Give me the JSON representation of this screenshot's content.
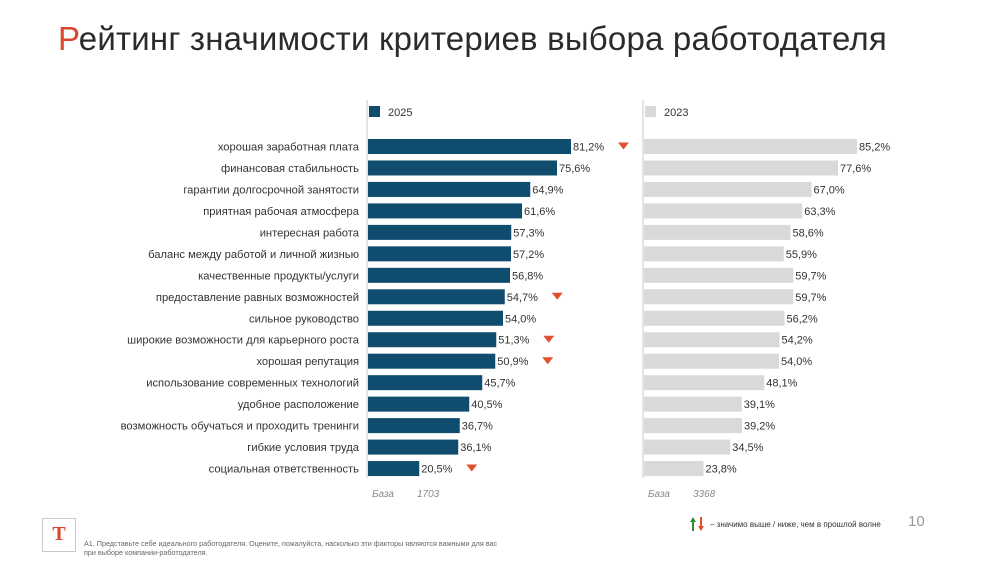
{
  "title_first": "Р",
  "title_rest": "ейтинг значимости критериев выбора работодателя",
  "footnote": "А1. Представьте себе идеального работодателя. Оцените, пожалуйста, насколько эти факторы являются важными для вас при выборе компании-работодателя.",
  "legend_note": "– значимо выше / ниже, чем в прошлой волне",
  "page_number": "10",
  "logo_letter": "Т",
  "chart_data": {
    "type": "bar",
    "orientation": "horizontal",
    "categories": [
      "хорошая заработная плата",
      "финансовая стабильность",
      "гарантии долгосрочной занятости",
      "приятная рабочая атмосфера",
      "интересная работа",
      "баланс между работой и личной жизнью",
      "качественные продукты/услуги",
      "предоставление равных возможностей",
      "сильное руководство",
      "широкие возможности для карьерного роста",
      "хорошая репутация",
      "использование современных технологий",
      "удобное расположение",
      "возможность обучаться и проходить тренинги",
      "гибкие условия труда",
      "социальная ответственность"
    ],
    "series": [
      {
        "name": "2025",
        "color": "#0f4c6e",
        "values": [
          81.2,
          75.6,
          64.9,
          61.6,
          57.3,
          57.2,
          56.8,
          54.7,
          54.0,
          51.3,
          50.9,
          45.7,
          40.5,
          36.7,
          36.1,
          20.5
        ],
        "labels": [
          "81,2%",
          "75,6%",
          "64,9%",
          "61,6%",
          "57,3%",
          "57,2%",
          "56,8%",
          "54,7%",
          "54,0%",
          "51,3%",
          "50,9%",
          "45,7%",
          "40,5%",
          "36,7%",
          "36,1%",
          "20,5%"
        ],
        "significance": [
          "down",
          null,
          null,
          null,
          null,
          null,
          null,
          "down",
          null,
          "down",
          "down",
          null,
          null,
          null,
          null,
          "down"
        ],
        "base_label": "База",
        "base_value": "1703"
      },
      {
        "name": "2023",
        "color": "#d9d9d9",
        "values": [
          85.2,
          77.6,
          67.0,
          63.3,
          58.6,
          55.9,
          59.7,
          59.7,
          56.2,
          54.2,
          54.0,
          48.1,
          39.1,
          39.2,
          34.5,
          23.8
        ],
        "labels": [
          "85,2%",
          "77,6%",
          "67,0%",
          "63,3%",
          "58,6%",
          "55,9%",
          "59,7%",
          "59,7%",
          "56,2%",
          "54,2%",
          "54,0%",
          "48,1%",
          "39,1%",
          "39,2%",
          "34,5%",
          "23,8%"
        ],
        "base_label": "База",
        "base_value": "3368"
      }
    ],
    "significance_colors": {
      "down": "#e0502f",
      "up": "#2e8b3a"
    },
    "xlim": [
      0,
      100
    ],
    "grid": false,
    "legend": "top"
  }
}
